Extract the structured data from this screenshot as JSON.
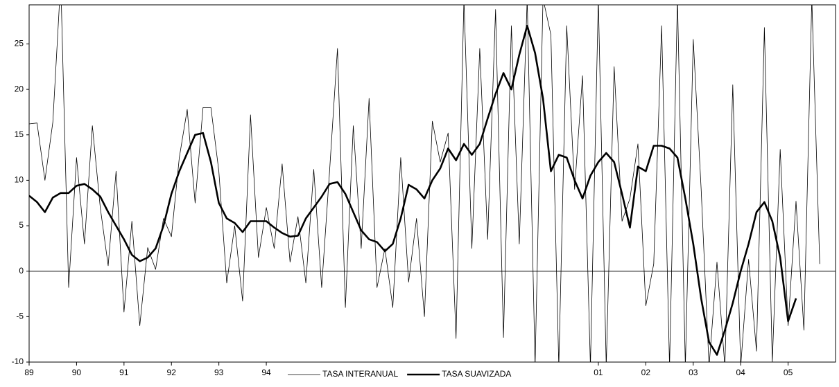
{
  "chart_data": {
    "type": "line",
    "x": [
      0,
      2,
      4,
      6,
      8,
      10,
      12,
      14,
      16,
      18,
      20,
      22,
      24,
      26,
      28,
      30,
      32,
      34,
      36,
      38,
      40,
      42,
      44,
      46,
      48,
      50,
      52,
      54,
      56,
      58,
      60,
      62,
      64,
      66,
      68,
      70,
      72,
      74,
      76,
      78,
      80,
      82,
      84,
      86,
      88,
      90,
      92,
      94,
      96,
      98,
      100,
      102,
      104,
      106,
      108,
      110,
      112,
      114,
      116,
      118,
      120,
      122,
      124,
      126,
      128,
      130,
      132,
      134,
      136,
      138,
      140,
      142,
      144,
      146,
      148,
      150,
      152,
      154,
      156,
      158,
      160,
      162,
      164,
      166,
      168,
      170,
      172,
      174,
      176,
      178,
      180,
      182,
      184,
      186,
      188,
      190,
      192,
      194,
      196,
      198,
      200
    ],
    "series": [
      {
        "name": "TASA INTERANUAL",
        "color": "#000000",
        "line_width": 0.8,
        "values": [
          16.2,
          16.3,
          10,
          16.4,
          32,
          -1.8,
          12.5,
          3,
          16,
          7,
          0.6,
          11,
          -4.5,
          5.5,
          -6,
          2.6,
          0.2,
          5.8,
          3.8,
          12.5,
          17.8,
          7.5,
          18,
          18,
          11,
          -1.3,
          5,
          -3.3,
          17.2,
          1.5,
          7,
          2.5,
          11.8,
          1,
          6,
          -1.3,
          11.2,
          -1.8,
          11,
          24.5,
          -4,
          16,
          2.5,
          19,
          -1.8,
          2.5,
          -4,
          12.5,
          -1.2,
          5.8,
          -5,
          16.5,
          12,
          15.2,
          -7.4,
          30,
          2.5,
          24.5,
          3.5,
          28.8,
          -7.3,
          27,
          3,
          30,
          -10.5,
          30,
          26,
          -10.5,
          27,
          9,
          21.5,
          -10.5,
          30,
          -10.5,
          22.5,
          5.5,
          8,
          14,
          -3.8,
          0.8,
          27,
          -10.5,
          30,
          -10.5,
          25.5,
          9,
          -10.5,
          1,
          -10.5,
          20.5,
          -10.5,
          1.3,
          -8.8,
          26.8,
          -10,
          13.4,
          -6,
          7.7,
          -6.5,
          30,
          0.8
        ]
      },
      {
        "name": "TASA SUAVIZADA",
        "color": "#000000",
        "line_width": 2.6,
        "values": [
          8.3,
          7.6,
          6.5,
          8.1,
          8.6,
          8.6,
          9.4,
          9.6,
          9,
          8.2,
          6.5,
          5,
          3.5,
          1.8,
          1.1,
          1.5,
          2.5,
          5,
          8.5,
          11,
          13,
          15,
          15.2,
          12,
          7.5,
          5.8,
          5.3,
          4.3,
          5.5,
          5.5,
          5.5,
          4.8,
          4.2,
          3.8,
          3.9,
          5.8,
          7,
          8.2,
          9.6,
          9.8,
          8.5,
          6.5,
          4.5,
          3.5,
          3.2,
          2.2,
          3,
          5.8,
          9.5,
          9,
          8,
          10,
          11.3,
          13.5,
          12.2,
          14,
          12.8,
          14,
          16.8,
          19.5,
          21.8,
          20,
          23.8,
          27,
          24,
          19,
          11,
          12.8,
          12.5,
          10,
          8,
          10.5,
          12,
          13,
          12,
          8.5,
          4.8,
          11.5,
          11,
          13.8,
          13.8,
          13.5,
          12.5,
          8,
          3,
          -3,
          -7.8,
          -9.2,
          -6.5,
          -3.5,
          0,
          3,
          6.5,
          7.6,
          5.5,
          1.5,
          -5.5,
          -3,
          null,
          null,
          null
        ]
      }
    ],
    "xlim": [
      0,
      204
    ],
    "xticks": [
      {
        "value": 0,
        "label": "89"
      },
      {
        "value": 12,
        "label": "90"
      },
      {
        "value": 24,
        "label": "91"
      },
      {
        "value": 36,
        "label": "92"
      },
      {
        "value": 48,
        "label": "93"
      },
      {
        "value": 60,
        "label": "94"
      },
      {
        "value": 144,
        "label": "01"
      },
      {
        "value": 156,
        "label": "02"
      },
      {
        "value": 168,
        "label": "03"
      },
      {
        "value": 180,
        "label": "04"
      },
      {
        "value": 192,
        "label": "05"
      }
    ],
    "ylim": [
      -10,
      29.3
    ],
    "yticks": [
      -10,
      -5,
      0,
      5,
      10,
      15,
      20,
      25
    ],
    "zero_line": true,
    "grid": false,
    "legend": "bottom"
  }
}
